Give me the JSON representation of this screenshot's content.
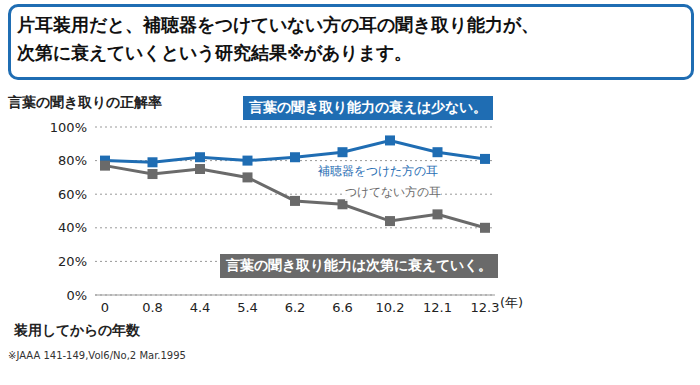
{
  "chart_data": {
    "type": "line",
    "title": [
      "片耳装用だと、補聴器をつけていない方の耳の聞き取り能力が、",
      "次第に衰えていくという研究結果※があります。"
    ],
    "y_label": "言葉の聞き取りの正解率",
    "x_label": "装用してからの年数",
    "x_unit": "(年)",
    "source": "※JAAA 141-149,Vol6/No,2 Mar.1995",
    "categories": [
      "0",
      "0.8",
      "4.4",
      "5.4",
      "6.2",
      "6.6",
      "10.2",
      "12.1",
      "12.3"
    ],
    "series": [
      {
        "name": "補聴器をつけた方の耳",
        "color": "#1f6db3",
        "marker": "square",
        "values": [
          80,
          79,
          82,
          80,
          82,
          85,
          92,
          85,
          81
        ]
      },
      {
        "name": "つけてない方の耳",
        "color": "#6a6a6a",
        "marker": "square",
        "values": [
          77,
          72,
          75,
          70,
          56,
          54,
          44,
          48,
          40
        ]
      }
    ],
    "ylim": [
      0,
      100
    ],
    "yticks": [
      {
        "value": 0,
        "label": "0%"
      },
      {
        "value": 20,
        "label": "20%"
      },
      {
        "value": 40,
        "label": "40%"
      },
      {
        "value": 60,
        "label": "60%"
      },
      {
        "value": 80,
        "label": "80%"
      },
      {
        "value": 100,
        "label": "100%"
      }
    ],
    "grid": true,
    "annotations": [
      {
        "text": "言葉の聞き取り能力の衰えは少ない。",
        "color": "#1f6db3"
      },
      {
        "text": "言葉の聞き取り能力は次第に衰えていく。",
        "color": "#6a6a6a"
      }
    ]
  }
}
